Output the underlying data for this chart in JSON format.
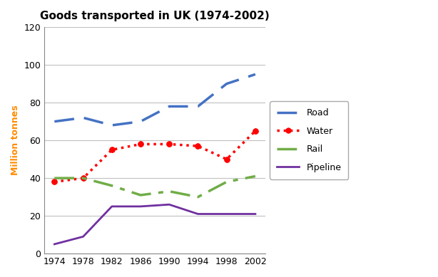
{
  "title": "Goods transported in UK (1974-2002)",
  "ylabel": "Million tonnes",
  "years": [
    1974,
    1978,
    1982,
    1986,
    1990,
    1994,
    1998,
    2002
  ],
  "road": [
    70,
    72,
    68,
    70,
    78,
    78,
    90,
    95
  ],
  "water": [
    38,
    40,
    55,
    58,
    58,
    57,
    50,
    65
  ],
  "rail": [
    40,
    40,
    36,
    31,
    33,
    30,
    38,
    41
  ],
  "pipeline": [
    5,
    9,
    25,
    25,
    26,
    21,
    21,
    21
  ],
  "road_color": "#4472C4",
  "water_color": "#FF0000",
  "rail_color": "#70AD47",
  "pipeline_color": "#7030A0",
  "ylim": [
    0,
    120
  ],
  "yticks": [
    0,
    20,
    40,
    60,
    80,
    100,
    120
  ],
  "background_color": "#FFFFFF",
  "grid_color": "#C0C0C0",
  "title_fontsize": 11,
  "axis_label_fontsize": 9,
  "tick_fontsize": 9,
  "legend_fontsize": 9,
  "ylabel_color": "#FF8C00"
}
